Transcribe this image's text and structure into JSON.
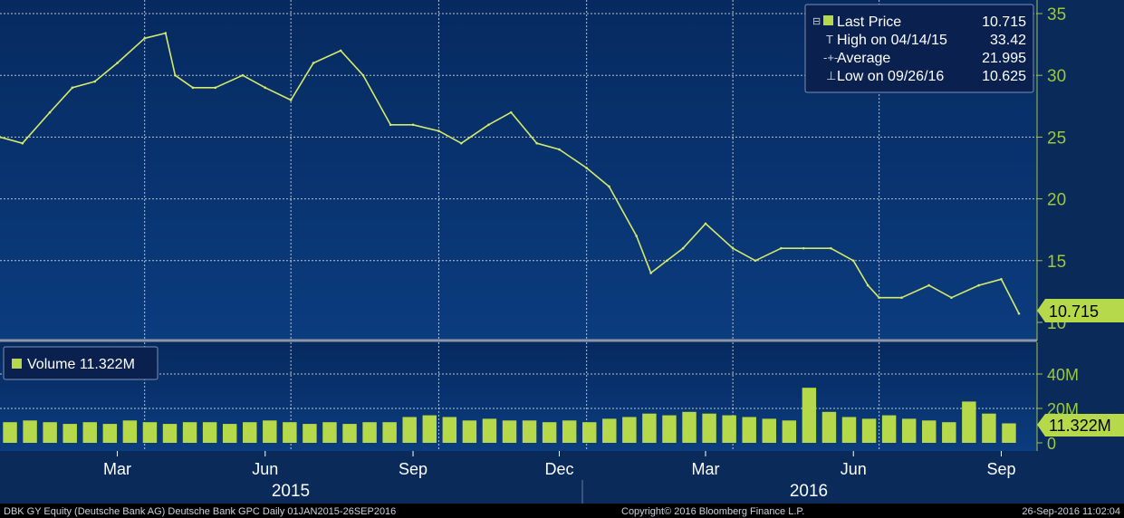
{
  "colors": {
    "background_top": "#062a60",
    "background_bottom": "#0b3c7e",
    "price_line": "#d4ea6a",
    "volume_bar": "#b5d94a",
    "axis_text": "#9dc83c",
    "grid": "#ffffff",
    "legend_border": "#7a8fb3",
    "footer_bg": "#000000",
    "footer_text": "#c9d2e0"
  },
  "legend": {
    "last_price_label": "Last Price",
    "last_price_value": "10.715",
    "high_label": "High on 04/14/15",
    "high_value": "33.42",
    "average_label": "Average",
    "average_value": "21.995",
    "low_label": "Low on 09/26/16",
    "low_value": "10.625"
  },
  "volume_legend": {
    "label": "Volume 11.322M"
  },
  "price_tag": "10.715",
  "volume_tag": "11.322M",
  "price_axis": {
    "ticks": [
      35,
      30,
      25,
      20,
      15,
      10
    ],
    "tick_labels": [
      "35",
      "30",
      "25",
      "20",
      "15",
      "10"
    ]
  },
  "volume_axis": {
    "ticks": [
      40,
      20,
      0
    ],
    "tick_labels": [
      "40M",
      "20M",
      "0"
    ]
  },
  "x_axis": {
    "month_labels": [
      "Mar",
      "Jun",
      "Sep",
      "Dec",
      "Mar",
      "Jun",
      "Sep"
    ],
    "year_labels": [
      "2015",
      "2016"
    ]
  },
  "footer": {
    "left": "DBK GY Equity (Deutsche Bank AG) Deutsche Bank GPC  Daily 01JAN2015-26SEP2016",
    "center": "Copyright© 2016 Bloomberg Finance L.P.",
    "right": "26-Sep-2016 11:02:04"
  },
  "chart_data": [
    {
      "type": "line",
      "title": "",
      "x_range": [
        "2015-01-01",
        "2016-09-26"
      ],
      "ylim": [
        10,
        35
      ],
      "grid": true,
      "legend_position": "top-right",
      "x": [
        "2015-01-01",
        "2015-01-15",
        "2015-02-01",
        "2015-02-15",
        "2015-03-01",
        "2015-03-15",
        "2015-04-01",
        "2015-04-14",
        "2015-04-20",
        "2015-05-01",
        "2015-05-15",
        "2015-06-01",
        "2015-06-15",
        "2015-07-01",
        "2015-07-15",
        "2015-08-01",
        "2015-08-15",
        "2015-09-01",
        "2015-09-15",
        "2015-10-01",
        "2015-10-15",
        "2015-11-01",
        "2015-11-15",
        "2015-12-01",
        "2015-12-15",
        "2016-01-01",
        "2016-01-15",
        "2016-02-01",
        "2016-02-10",
        "2016-02-20",
        "2016-03-01",
        "2016-03-15",
        "2016-04-01",
        "2016-04-15",
        "2016-05-01",
        "2016-05-15",
        "2016-06-01",
        "2016-06-15",
        "2016-06-24",
        "2016-07-01",
        "2016-07-15",
        "2016-08-01",
        "2016-08-15",
        "2016-09-01",
        "2016-09-15",
        "2016-09-26"
      ],
      "series": [
        {
          "values": [
            25,
            24.5,
            27,
            29,
            29.5,
            31,
            33,
            33.42,
            30,
            29,
            29,
            30,
            29,
            28,
            31,
            32,
            30,
            26,
            26,
            25.5,
            24.5,
            26,
            27,
            24.5,
            24,
            22.5,
            21,
            17,
            14,
            15,
            16,
            18,
            16,
            15,
            16,
            16,
            16,
            15,
            13,
            12,
            12,
            13,
            12,
            13,
            13.5,
            10.715
          ]
        }
      ]
    },
    {
      "type": "bar",
      "title": "",
      "ylim": [
        0,
        40
      ],
      "x_range": [
        "2015-01-01",
        "2016-09-26"
      ],
      "series": [
        {
          "values": [
            12,
            13,
            12,
            11,
            12,
            11,
            13,
            12,
            11,
            12,
            12,
            11,
            12,
            13,
            12,
            11,
            12,
            11,
            12,
            12,
            15,
            16,
            15,
            13,
            14,
            13,
            13,
            12,
            13,
            12,
            14,
            15,
            17,
            16,
            18,
            17,
            16,
            15,
            14,
            13,
            32,
            18,
            15,
            14,
            16,
            14,
            13,
            12,
            24,
            17,
            11.322
          ]
        }
      ]
    }
  ]
}
